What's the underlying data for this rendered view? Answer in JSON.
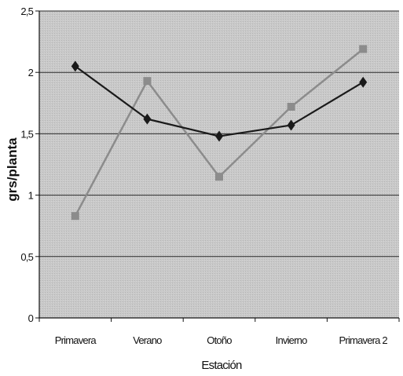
{
  "chart_data": {
    "type": "line",
    "title": "",
    "xlabel": "Estación",
    "ylabel": "grs/planta",
    "categories": [
      "Primavera",
      "Verano",
      "Otoño",
      "Invierno",
      "Primavera 2"
    ],
    "y_tick_labels": [
      "0",
      "0,5",
      "1",
      "1,5",
      "2",
      "2,5"
    ],
    "ylim": [
      0,
      2.5
    ],
    "grid": true,
    "legend": "none",
    "series": [
      {
        "marker": "diamond",
        "color": "#1a1a1a",
        "values": [
          2.05,
          1.62,
          1.48,
          1.57,
          1.92
        ]
      },
      {
        "marker": "square",
        "color": "#8c8c8c",
        "values": [
          0.83,
          1.93,
          1.15,
          1.72,
          2.19
        ]
      }
    ],
    "plot_background": "#c7c7c7"
  }
}
